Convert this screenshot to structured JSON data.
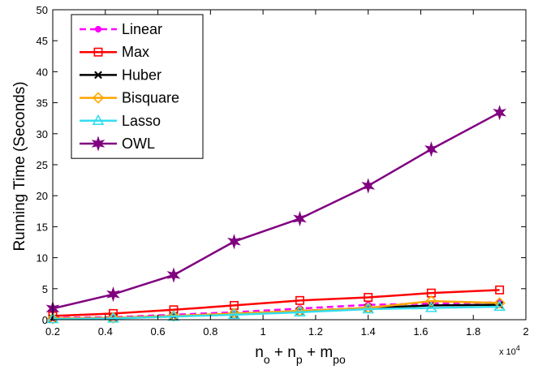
{
  "chart_data": {
    "type": "line",
    "title": "",
    "xlabel": "n_o + n_p + m_po",
    "xlabel_parts": [
      {
        "text": "n",
        "sub": "o"
      },
      {
        "text": " + n",
        "sub": "p"
      },
      {
        "text": " + m",
        "sub": "po"
      }
    ],
    "ylabel": "Running Time (Seconds)",
    "x_multiplier": "x 10",
    "x_multiplier_exp": "4",
    "xlim": [
      0.2,
      2
    ],
    "ylim": [
      0,
      50
    ],
    "xticks": [
      0.2,
      0.4,
      0.6,
      0.8,
      1,
      1.2,
      1.4,
      1.6,
      1.8,
      2
    ],
    "xtick_labels": [
      "0.2",
      "0.4",
      "0.6",
      "0.8",
      "1",
      "1.2",
      "1.4",
      "1.6",
      "1.8",
      "2"
    ],
    "yticks": [
      0,
      5,
      10,
      15,
      20,
      25,
      30,
      35,
      40,
      45,
      50
    ],
    "ytick_labels": [
      "0",
      "5",
      "10",
      "15",
      "20",
      "25",
      "30",
      "35",
      "40",
      "45",
      "50"
    ],
    "grid": false,
    "legend_position": "top-left",
    "x": [
      0.2,
      0.43,
      0.66,
      0.89,
      1.14,
      1.4,
      1.64,
      1.9
    ],
    "series": [
      {
        "name": "Linear",
        "color": "#ff00ff",
        "dash": true,
        "marker": "dot",
        "values": [
          0.3,
          0.4,
          0.8,
          1.2,
          1.8,
          2.4,
          2.6,
          2.8
        ]
      },
      {
        "name": "Max",
        "color": "#ff0000",
        "dash": false,
        "marker": "square",
        "values": [
          0.6,
          1.0,
          1.6,
          2.3,
          3.1,
          3.6,
          4.3,
          4.8
        ]
      },
      {
        "name": "Huber",
        "color": "#000000",
        "dash": false,
        "marker": "x",
        "values": [
          0.2,
          0.3,
          0.6,
          0.9,
          1.4,
          1.9,
          2.3,
          2.4
        ]
      },
      {
        "name": "Bisquare",
        "color": "#ffa500",
        "dash": false,
        "marker": "diamond",
        "values": [
          0.2,
          0.3,
          0.6,
          1.0,
          1.4,
          1.9,
          3.0,
          2.7
        ]
      },
      {
        "name": "Lasso",
        "color": "#33ddee",
        "dash": false,
        "marker": "triangle",
        "values": [
          0.1,
          0.2,
          0.5,
          0.8,
          1.2,
          1.7,
          1.9,
          2.1
        ]
      },
      {
        "name": "OWL",
        "color": "#800080",
        "dash": false,
        "marker": "star",
        "values": [
          1.8,
          4.1,
          7.2,
          12.6,
          16.3,
          21.6,
          27.5,
          33.4
        ]
      }
    ]
  }
}
